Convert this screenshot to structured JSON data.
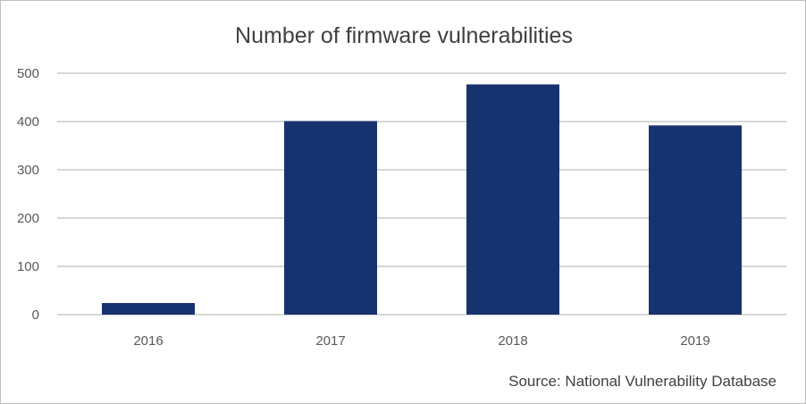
{
  "chart_data": {
    "type": "bar",
    "title": "Number of firmware vulnerabilities",
    "categories": [
      "2016",
      "2017",
      "2018",
      "2019"
    ],
    "values": [
      24,
      401,
      477,
      392
    ],
    "ylim": [
      0,
      500
    ],
    "yticks": [
      "0",
      "100",
      "200",
      "300",
      "400",
      "500"
    ],
    "xlabel": "",
    "ylabel": "",
    "grid": true,
    "bar_color": "#17336f",
    "source": "Source: National Vulnerability Database"
  }
}
